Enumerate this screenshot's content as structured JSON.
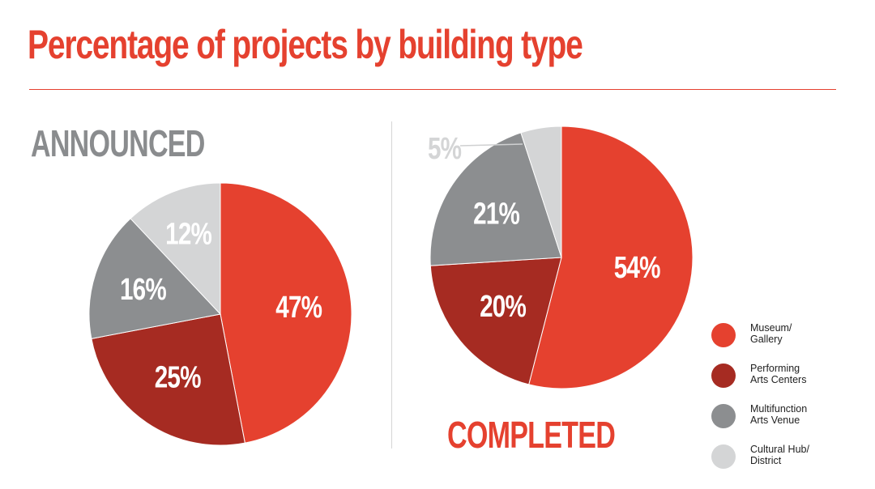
{
  "title": "Percentage of projects by building type",
  "colors": {
    "museum": "#e5412f",
    "performing": "#a62b22",
    "multifunction": "#8c8e90",
    "cultural": "#d4d5d6",
    "title": "#e5412f"
  },
  "legend": [
    {
      "key": "museum",
      "line1": "Museum/",
      "line2": "Gallery"
    },
    {
      "key": "performing",
      "line1": "Performing",
      "line2": "Arts Centers"
    },
    {
      "key": "multifunction",
      "line1": "Multifunction",
      "line2": "Arts Venue"
    },
    {
      "key": "cultural",
      "line1": "Cultural Hub/",
      "line2": "District"
    }
  ],
  "chart_data": [
    {
      "type": "pie",
      "title": "ANNOUNCED",
      "slices": [
        {
          "category": "Museum/ Gallery",
          "key": "museum",
          "value": 47,
          "label": "47%"
        },
        {
          "category": "Performing Arts Centers",
          "key": "performing",
          "value": 25,
          "label": "25%"
        },
        {
          "category": "Multifunction Arts Venue",
          "key": "multifunction",
          "value": 16,
          "label": "16%"
        },
        {
          "category": "Cultural Hub/ District",
          "key": "cultural",
          "value": 12,
          "label": "12%"
        }
      ]
    },
    {
      "type": "pie",
      "title": "COMPLETED",
      "slices": [
        {
          "category": "Museum/ Gallery",
          "key": "museum",
          "value": 54,
          "label": "54%"
        },
        {
          "category": "Performing Arts Centers",
          "key": "performing",
          "value": 20,
          "label": "20%"
        },
        {
          "category": "Multifunction Arts Venue",
          "key": "multifunction",
          "value": 21,
          "label": "21%"
        },
        {
          "category": "Cultural Hub/ District",
          "key": "cultural",
          "value": 5,
          "label": "5%"
        }
      ]
    }
  ]
}
